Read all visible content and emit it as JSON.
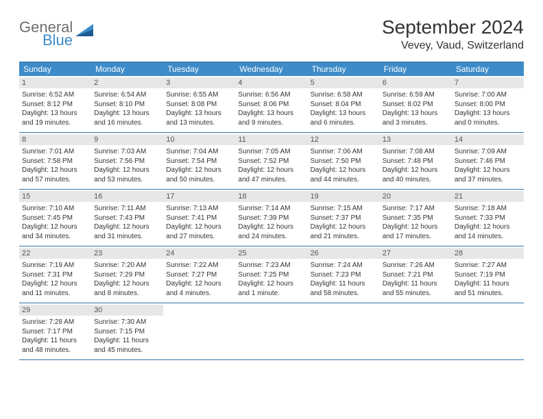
{
  "branding": {
    "logo_general": "General",
    "logo_blue": "Blue",
    "logo_tri_color_dark": "#1f5a90",
    "logo_tri_color_light": "#3d8bc8"
  },
  "header": {
    "title": "September 2024",
    "location": "Vevey, Vaud, Switzerland"
  },
  "colors": {
    "header_bg": "#3d8bc8",
    "header_text": "#ffffff",
    "rule": "#2f6fa6",
    "daynum_bg": "#e7e7e7",
    "daynum_text": "#555555",
    "body_text": "#333333",
    "page_bg": "#ffffff"
  },
  "calendar": {
    "day_names": [
      "Sunday",
      "Monday",
      "Tuesday",
      "Wednesday",
      "Thursday",
      "Friday",
      "Saturday"
    ],
    "days": [
      {
        "n": "1",
        "sunrise": "6:52 AM",
        "sunset": "8:12 PM",
        "daylight": "13 hours and 19 minutes."
      },
      {
        "n": "2",
        "sunrise": "6:54 AM",
        "sunset": "8:10 PM",
        "daylight": "13 hours and 16 minutes."
      },
      {
        "n": "3",
        "sunrise": "6:55 AM",
        "sunset": "8:08 PM",
        "daylight": "13 hours and 13 minutes."
      },
      {
        "n": "4",
        "sunrise": "6:56 AM",
        "sunset": "8:06 PM",
        "daylight": "13 hours and 9 minutes."
      },
      {
        "n": "5",
        "sunrise": "6:58 AM",
        "sunset": "8:04 PM",
        "daylight": "13 hours and 6 minutes."
      },
      {
        "n": "6",
        "sunrise": "6:59 AM",
        "sunset": "8:02 PM",
        "daylight": "13 hours and 3 minutes."
      },
      {
        "n": "7",
        "sunrise": "7:00 AM",
        "sunset": "8:00 PM",
        "daylight": "13 hours and 0 minutes."
      },
      {
        "n": "8",
        "sunrise": "7:01 AM",
        "sunset": "7:58 PM",
        "daylight": "12 hours and 57 minutes."
      },
      {
        "n": "9",
        "sunrise": "7:03 AM",
        "sunset": "7:56 PM",
        "daylight": "12 hours and 53 minutes."
      },
      {
        "n": "10",
        "sunrise": "7:04 AM",
        "sunset": "7:54 PM",
        "daylight": "12 hours and 50 minutes."
      },
      {
        "n": "11",
        "sunrise": "7:05 AM",
        "sunset": "7:52 PM",
        "daylight": "12 hours and 47 minutes."
      },
      {
        "n": "12",
        "sunrise": "7:06 AM",
        "sunset": "7:50 PM",
        "daylight": "12 hours and 44 minutes."
      },
      {
        "n": "13",
        "sunrise": "7:08 AM",
        "sunset": "7:48 PM",
        "daylight": "12 hours and 40 minutes."
      },
      {
        "n": "14",
        "sunrise": "7:09 AM",
        "sunset": "7:46 PM",
        "daylight": "12 hours and 37 minutes."
      },
      {
        "n": "15",
        "sunrise": "7:10 AM",
        "sunset": "7:45 PM",
        "daylight": "12 hours and 34 minutes."
      },
      {
        "n": "16",
        "sunrise": "7:11 AM",
        "sunset": "7:43 PM",
        "daylight": "12 hours and 31 minutes."
      },
      {
        "n": "17",
        "sunrise": "7:13 AM",
        "sunset": "7:41 PM",
        "daylight": "12 hours and 27 minutes."
      },
      {
        "n": "18",
        "sunrise": "7:14 AM",
        "sunset": "7:39 PM",
        "daylight": "12 hours and 24 minutes."
      },
      {
        "n": "19",
        "sunrise": "7:15 AM",
        "sunset": "7:37 PM",
        "daylight": "12 hours and 21 minutes."
      },
      {
        "n": "20",
        "sunrise": "7:17 AM",
        "sunset": "7:35 PM",
        "daylight": "12 hours and 17 minutes."
      },
      {
        "n": "21",
        "sunrise": "7:18 AM",
        "sunset": "7:33 PM",
        "daylight": "12 hours and 14 minutes."
      },
      {
        "n": "22",
        "sunrise": "7:19 AM",
        "sunset": "7:31 PM",
        "daylight": "12 hours and 11 minutes."
      },
      {
        "n": "23",
        "sunrise": "7:20 AM",
        "sunset": "7:29 PM",
        "daylight": "12 hours and 8 minutes."
      },
      {
        "n": "24",
        "sunrise": "7:22 AM",
        "sunset": "7:27 PM",
        "daylight": "12 hours and 4 minutes."
      },
      {
        "n": "25",
        "sunrise": "7:23 AM",
        "sunset": "7:25 PM",
        "daylight": "12 hours and 1 minute."
      },
      {
        "n": "26",
        "sunrise": "7:24 AM",
        "sunset": "7:23 PM",
        "daylight": "11 hours and 58 minutes."
      },
      {
        "n": "27",
        "sunrise": "7:26 AM",
        "sunset": "7:21 PM",
        "daylight": "11 hours and 55 minutes."
      },
      {
        "n": "28",
        "sunrise": "7:27 AM",
        "sunset": "7:19 PM",
        "daylight": "11 hours and 51 minutes."
      },
      {
        "n": "29",
        "sunrise": "7:28 AM",
        "sunset": "7:17 PM",
        "daylight": "11 hours and 48 minutes."
      },
      {
        "n": "30",
        "sunrise": "7:30 AM",
        "sunset": "7:15 PM",
        "daylight": "11 hours and 45 minutes."
      }
    ],
    "weeks_trailing_empty": 5
  },
  "labels": {
    "sunrise_prefix": "Sunrise: ",
    "sunset_prefix": "Sunset: ",
    "daylight_prefix": "Daylight: "
  }
}
